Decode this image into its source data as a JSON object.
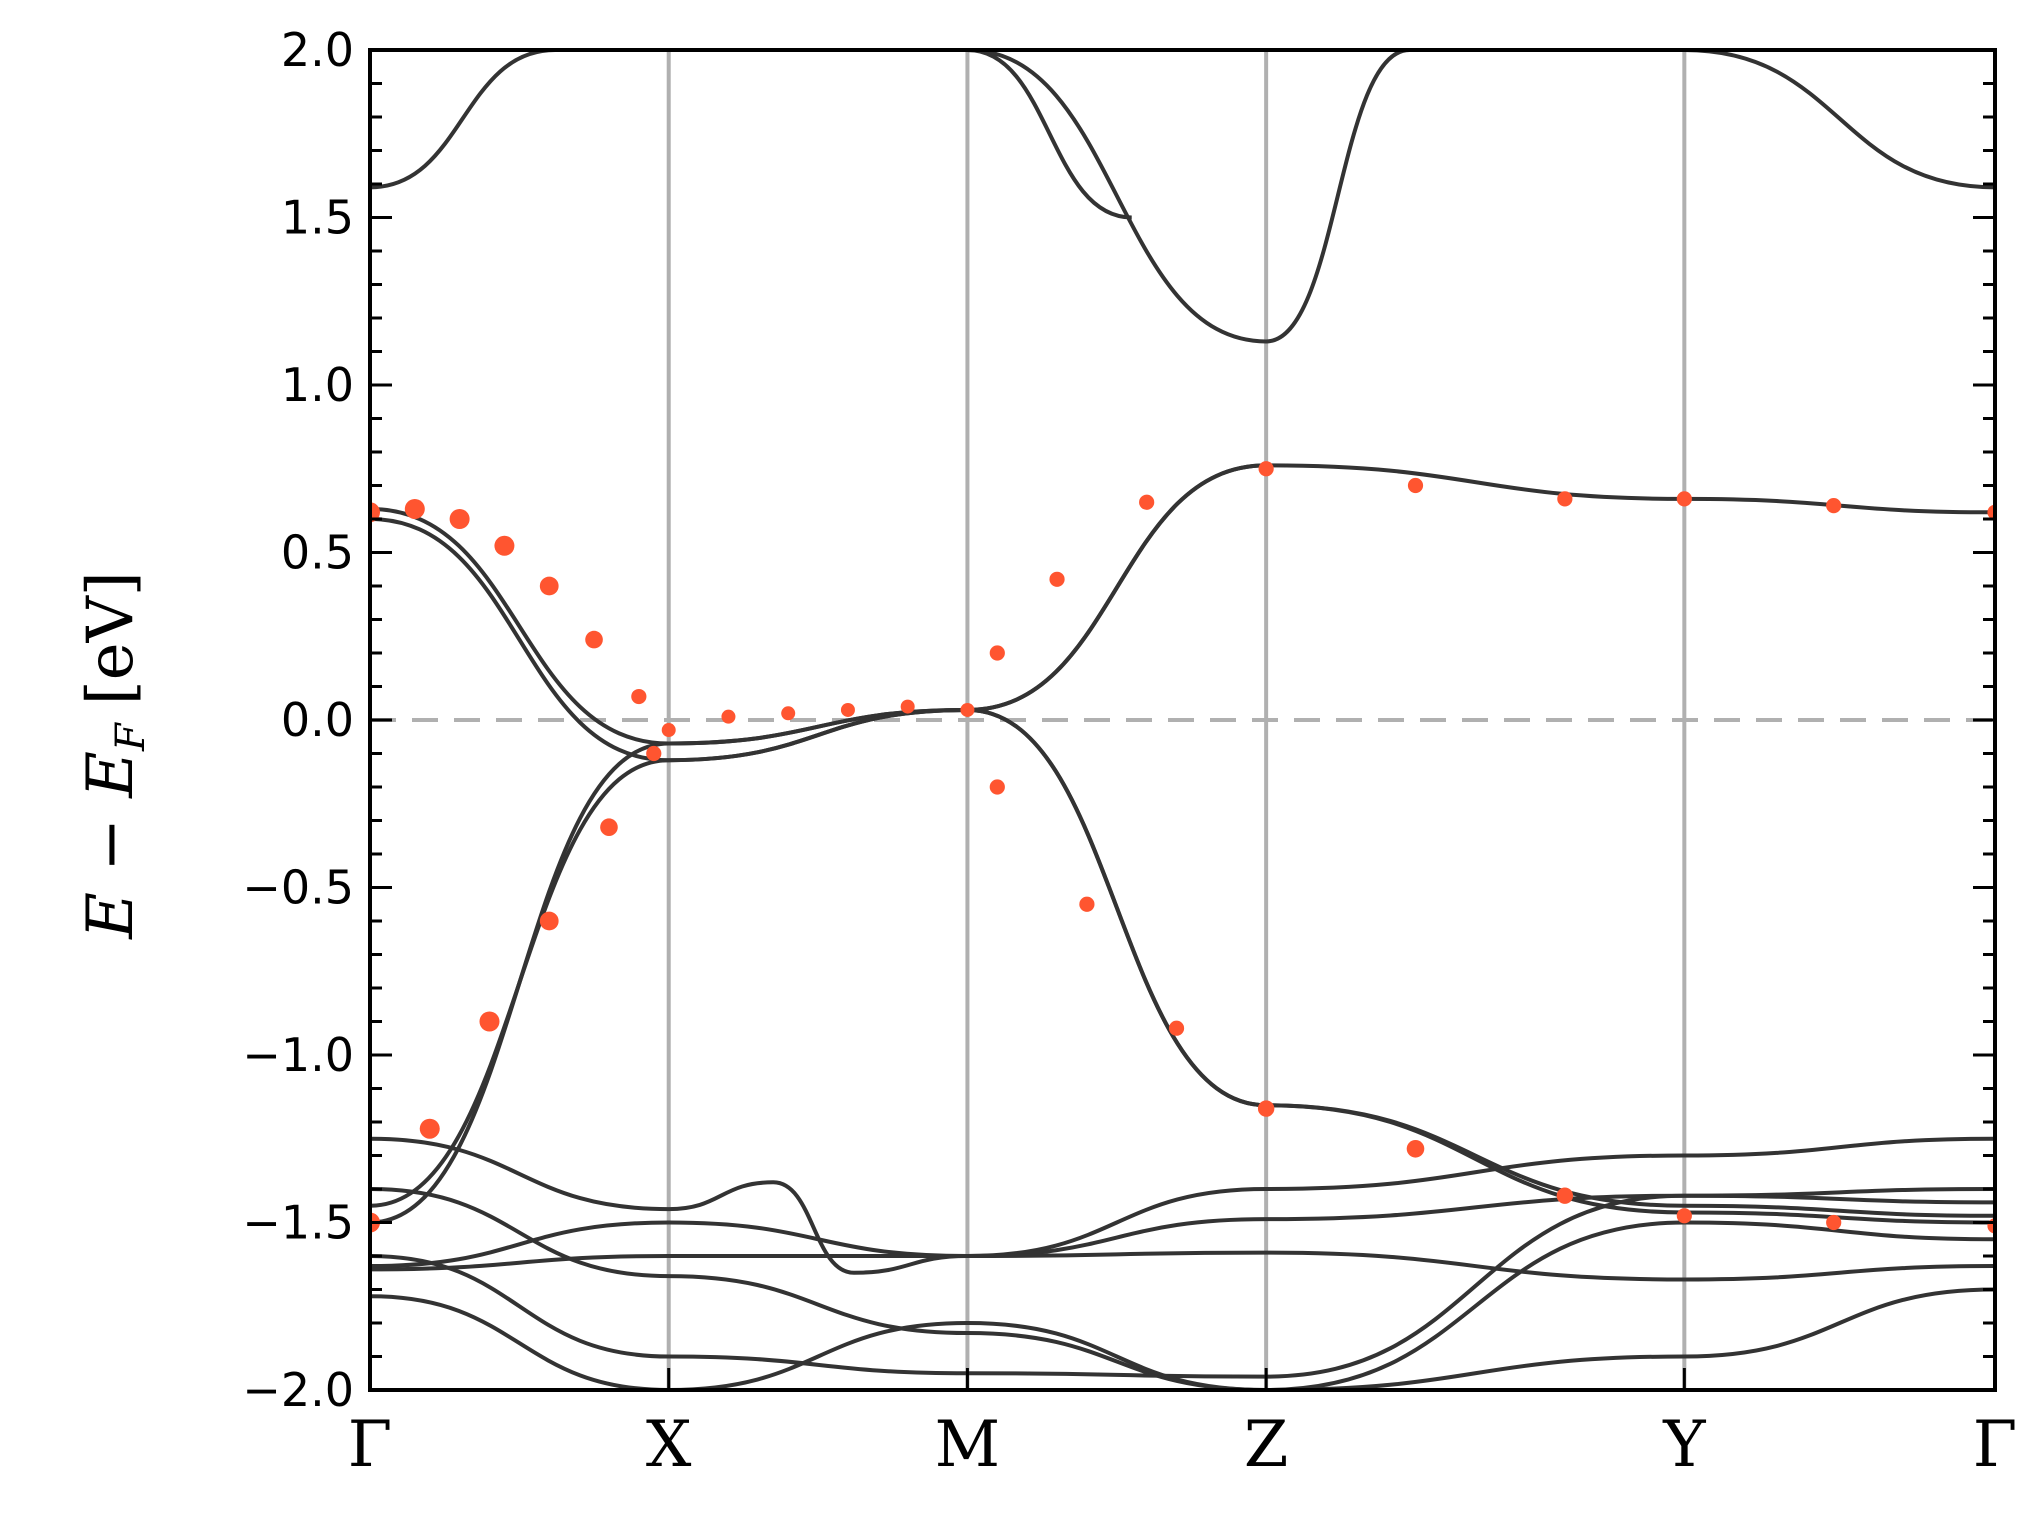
{
  "chart_data": {
    "type": "line",
    "title": "",
    "ylabel": {
      "italic_expr": [
        "E",
        " − ",
        "E",
        "F"
      ],
      "unit": "[eV]"
    },
    "xlabel": "",
    "ylim": [
      -2.0,
      2.0
    ],
    "yticks": [
      -2.0,
      -1.5,
      -1.0,
      -0.5,
      0.0,
      0.5,
      1.0,
      1.5,
      2.0
    ],
    "ytick_labels": [
      "−2.0",
      "−1.5",
      "−1.0",
      "−0.5",
      "0.0",
      "0.5",
      "1.0",
      "1.5",
      "2.0"
    ],
    "kpath": {
      "labels": [
        "Γ",
        "X",
        "M",
        "Z",
        "Y",
        "Γ"
      ],
      "positions": [
        0.0,
        1.0,
        2.0,
        3.0,
        4.4,
        5.44
      ]
    },
    "fermi_level": 0.0,
    "colors": {
      "bands": "#333333",
      "projection": "#ff5530",
      "guides": "#b0b0b0"
    },
    "series": [
      {
        "role": "band",
        "x": [
          0,
          1.0,
          2.0,
          3.0
        ],
        "y": [
          -1.5,
          -0.07,
          0.03,
          0.76
        ]
      },
      {
        "role": "band",
        "x": [
          0,
          1.0,
          2.0,
          3.0
        ],
        "y": [
          0.63,
          -0.07,
          0.03,
          -1.15
        ]
      },
      {
        "role": "band",
        "x": [
          0,
          1.0,
          2.0,
          3.0
        ],
        "y": [
          0.6,
          -0.12,
          0.03,
          -1.15
        ]
      },
      {
        "role": "band",
        "x": [
          0,
          1.0,
          2.0,
          3.0
        ],
        "y": [
          -1.45,
          -0.12,
          0.03,
          0.76
        ]
      },
      {
        "role": "band",
        "x": [
          3.0,
          4.4,
          5.44
        ],
        "y": [
          0.76,
          0.66,
          0.62
        ]
      },
      {
        "role": "band",
        "x": [
          3.0,
          4.4,
          5.44
        ],
        "y": [
          -1.15,
          -1.47,
          -1.5
        ]
      },
      {
        "role": "band",
        "x": [
          3.0,
          4.4,
          5.44
        ],
        "y": [
          -1.15,
          -1.45,
          -1.48
        ]
      },
      {
        "role": "band",
        "x": [
          0,
          0.62,
          1.0,
          1.35,
          2.0,
          2.55
        ],
        "y": [
          1.59,
          2.0,
          2.0,
          2.0,
          2.0,
          1.5
        ]
      },
      {
        "role": "band",
        "x": [
          2.0,
          3.0,
          3.48
        ],
        "y": [
          2.0,
          1.13,
          2.0
        ]
      },
      {
        "role": "band",
        "x": [
          4.2,
          4.4,
          5.44
        ],
        "y": [
          2.0,
          2.0,
          1.59
        ]
      },
      {
        "role": "band",
        "x": [
          0,
          1.0,
          1.35,
          1.62,
          2.0,
          3.0,
          4.4,
          5.44
        ],
        "y": [
          -1.25,
          -1.46,
          -1.38,
          -1.65,
          -1.6,
          -1.4,
          -1.3,
          -1.25
        ]
      },
      {
        "role": "band",
        "x": [
          0,
          1.0,
          2.0,
          3.0,
          4.4,
          5.44
        ],
        "y": [
          -1.4,
          -1.66,
          -1.83,
          -2.0,
          -1.9,
          -1.7
        ]
      },
      {
        "role": "band",
        "x": [
          0,
          1.0,
          2.0,
          3.0,
          4.4,
          5.44
        ],
        "y": [
          -1.63,
          -1.5,
          -1.6,
          -1.49,
          -1.42,
          -1.44
        ]
      },
      {
        "role": "band",
        "x": [
          0,
          1.0,
          2.0,
          3.0,
          4.4,
          5.44
        ],
        "y": [
          -1.64,
          -1.6,
          -1.6,
          -1.59,
          -1.67,
          -1.63
        ]
      },
      {
        "role": "band",
        "x": [
          0,
          1.0,
          2.0,
          3.0,
          4.4,
          5.44
        ],
        "y": [
          -1.6,
          -1.9,
          -1.95,
          -1.96,
          -1.42,
          -1.4
        ]
      },
      {
        "role": "band",
        "x": [
          0,
          1.0,
          2.0,
          3.0,
          4.4,
          5.44
        ],
        "y": [
          -1.72,
          -2.0,
          -1.8,
          -2.0,
          -1.5,
          -1.55
        ]
      }
    ],
    "projection_points": [
      {
        "x": 0.0,
        "y": 0.62,
        "w": 1.0
      },
      {
        "x": 0.15,
        "y": 0.63,
        "w": 1.0
      },
      {
        "x": 0.3,
        "y": 0.6,
        "w": 1.0
      },
      {
        "x": 0.45,
        "y": 0.52,
        "w": 1.0
      },
      {
        "x": 0.6,
        "y": 0.4,
        "w": 0.9
      },
      {
        "x": 0.75,
        "y": 0.24,
        "w": 0.8
      },
      {
        "x": 0.9,
        "y": 0.07,
        "w": 0.6
      },
      {
        "x": 1.0,
        "y": -0.03,
        "w": 0.5
      },
      {
        "x": 1.2,
        "y": 0.01,
        "w": 0.5
      },
      {
        "x": 1.4,
        "y": 0.02,
        "w": 0.5
      },
      {
        "x": 1.6,
        "y": 0.03,
        "w": 0.5
      },
      {
        "x": 1.8,
        "y": 0.04,
        "w": 0.5
      },
      {
        "x": 2.0,
        "y": 0.03,
        "w": 0.5
      },
      {
        "x": 0.0,
        "y": -1.5,
        "w": 1.0
      },
      {
        "x": 0.2,
        "y": -1.22,
        "w": 1.0
      },
      {
        "x": 0.4,
        "y": -0.9,
        "w": 1.0
      },
      {
        "x": 0.6,
        "y": -0.6,
        "w": 0.9
      },
      {
        "x": 0.8,
        "y": -0.32,
        "w": 0.8
      },
      {
        "x": 0.95,
        "y": -0.1,
        "w": 0.6
      },
      {
        "x": 2.1,
        "y": 0.2,
        "w": 0.6
      },
      {
        "x": 2.3,
        "y": 0.42,
        "w": 0.6
      },
      {
        "x": 2.6,
        "y": 0.65,
        "w": 0.6
      },
      {
        "x": 3.0,
        "y": 0.75,
        "w": 0.6
      },
      {
        "x": 3.5,
        "y": 0.7,
        "w": 0.6
      },
      {
        "x": 4.0,
        "y": 0.66,
        "w": 0.6
      },
      {
        "x": 4.4,
        "y": 0.66,
        "w": 0.6
      },
      {
        "x": 4.9,
        "y": 0.64,
        "w": 0.6
      },
      {
        "x": 5.44,
        "y": 0.62,
        "w": 0.6
      },
      {
        "x": 2.1,
        "y": -0.2,
        "w": 0.6
      },
      {
        "x": 2.4,
        "y": -0.55,
        "w": 0.6
      },
      {
        "x": 2.7,
        "y": -0.92,
        "w": 0.6
      },
      {
        "x": 3.0,
        "y": -1.16,
        "w": 0.7
      },
      {
        "x": 3.5,
        "y": -1.28,
        "w": 0.8
      },
      {
        "x": 4.0,
        "y": -1.42,
        "w": 0.7
      },
      {
        "x": 4.4,
        "y": -1.48,
        "w": 0.6
      },
      {
        "x": 4.9,
        "y": -1.5,
        "w": 0.6
      },
      {
        "x": 5.44,
        "y": -1.51,
        "w": 0.6
      }
    ]
  }
}
